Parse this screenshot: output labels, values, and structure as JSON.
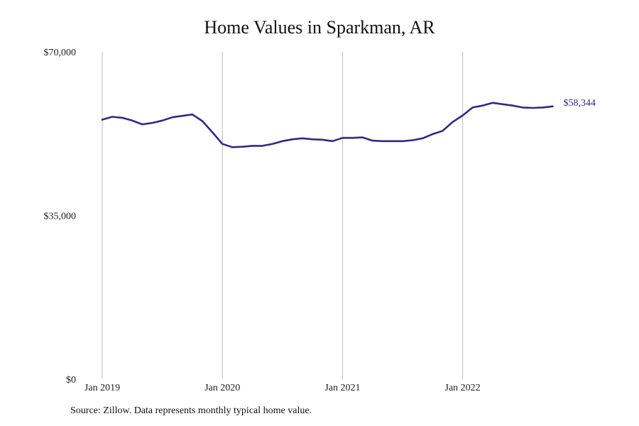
{
  "chart_data": {
    "type": "line",
    "title": "Home Values in Sparkman, AR",
    "xlabel": "",
    "ylabel": "",
    "ylim": [
      0,
      70000
    ],
    "y_ticks": [
      {
        "value": 0,
        "label": "$0"
      },
      {
        "value": 35000,
        "label": "$35,000"
      },
      {
        "value": 70000,
        "label": "$70,000"
      }
    ],
    "x_ticks": [
      {
        "index": 0,
        "label": "Jan 2019"
      },
      {
        "index": 12,
        "label": "Jan 2020"
      },
      {
        "index": 24,
        "label": "Jan 2021"
      },
      {
        "index": 36,
        "label": "Jan 2022"
      }
    ],
    "grid": "vertical lines at year ticks",
    "series": [
      {
        "color": "#2e2a8c",
        "end_label": "$58,344",
        "x": [
          "2019-01",
          "2019-02",
          "2019-03",
          "2019-04",
          "2019-05",
          "2019-06",
          "2019-07",
          "2019-08",
          "2019-09",
          "2019-10",
          "2019-11",
          "2019-12",
          "2020-01",
          "2020-02",
          "2020-03",
          "2020-04",
          "2020-05",
          "2020-06",
          "2020-07",
          "2020-08",
          "2020-09",
          "2020-10",
          "2020-11",
          "2020-12",
          "2021-01",
          "2021-02",
          "2021-03",
          "2021-04",
          "2021-05",
          "2021-06",
          "2021-07",
          "2021-08",
          "2021-09",
          "2021-10",
          "2021-11",
          "2021-12",
          "2022-01",
          "2022-02",
          "2022-03",
          "2022-04",
          "2022-05",
          "2022-06",
          "2022-07",
          "2022-08",
          "2022-09",
          "2022-10"
        ],
        "values": [
          55500,
          56100,
          55900,
          55300,
          54500,
          54800,
          55300,
          56000,
          56300,
          56600,
          55200,
          52800,
          50300,
          49600,
          49700,
          49900,
          49900,
          50300,
          50900,
          51300,
          51500,
          51300,
          51200,
          50900,
          51600,
          51600,
          51700,
          51000,
          50900,
          50900,
          50900,
          51100,
          51500,
          52400,
          53100,
          55000,
          56400,
          58100,
          58500,
          59100,
          58800,
          58500,
          58100,
          58000,
          58100,
          58344
        ]
      }
    ]
  },
  "source_note": "Source: Zillow. Data represents monthly typical home value."
}
